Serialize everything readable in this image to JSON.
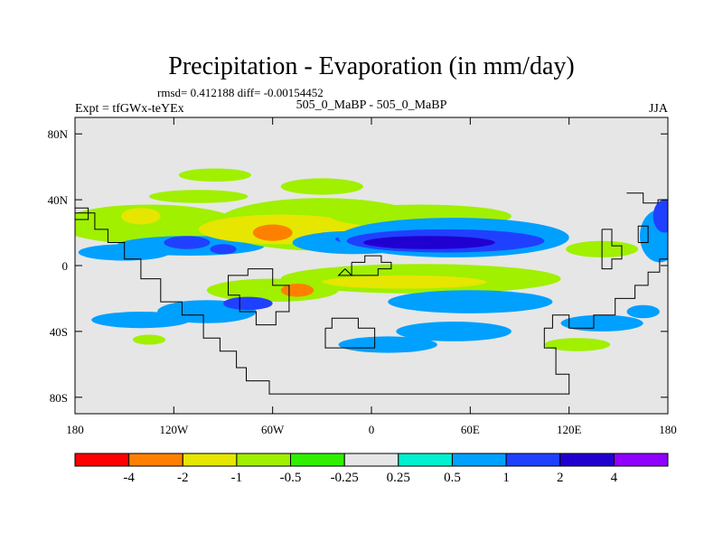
{
  "chart_data": {
    "type": "heatmap",
    "title": "Precipitation - Evaporation (in mm/day)",
    "stats_line": "rmsd= 0.412188 diff= -0.00154452",
    "left_label": "Expt = tfGWx-teYEx",
    "center_label": "505_0_MaBP - 505_0_MaBP",
    "right_label": "JJA",
    "x_ticks": [
      "180",
      "120W",
      "60W",
      "0",
      "60E",
      "120E",
      "180"
    ],
    "y_ticks": [
      "80N",
      "40N",
      "0",
      "40S",
      "80S"
    ],
    "xlim": [
      -180,
      180
    ],
    "ylim": [
      -90,
      90
    ],
    "colorbar": {
      "labels": [
        "-4",
        "-2",
        "-1",
        "-0.5",
        "-0.25",
        "0.25",
        "0.5",
        "1",
        "2",
        "4"
      ],
      "colors": [
        "#ff0000",
        "#ff8000",
        "#e6e600",
        "#a0f000",
        "#30f000",
        "#e6e6e6",
        "#00f0d0",
        "#00a0ff",
        "#2040ff",
        "#2000d0",
        "#9000ff"
      ]
    },
    "field_blobs": [
      {
        "lon": -135,
        "lat": 25,
        "rlon": 55,
        "rlat": 12,
        "level": "-0.5"
      },
      {
        "lon": -140,
        "lat": 30,
        "rlon": 12,
        "rlat": 5,
        "level": "-1"
      },
      {
        "lon": -105,
        "lat": 42,
        "rlon": 30,
        "rlat": 4,
        "level": "-0.5"
      },
      {
        "lon": -150,
        "lat": 8,
        "rlon": 28,
        "rlat": 5,
        "level": "0.5"
      },
      {
        "lon": -110,
        "lat": 12,
        "rlon": 45,
        "rlat": 6,
        "level": "0.5"
      },
      {
        "lon": -112,
        "lat": 14,
        "rlon": 14,
        "rlat": 4,
        "level": "1"
      },
      {
        "lon": -90,
        "lat": 10,
        "rlon": 8,
        "rlat": 3,
        "level": "1"
      },
      {
        "lon": -30,
        "lat": 25,
        "rlon": 65,
        "rlat": 16,
        "level": "-0.5"
      },
      {
        "lon": -55,
        "lat": 22,
        "rlon": 50,
        "rlat": 9,
        "level": "-1"
      },
      {
        "lon": -60,
        "lat": 20,
        "rlon": 12,
        "rlat": 5,
        "level": "-2"
      },
      {
        "lon": -10,
        "lat": 14,
        "rlon": 38,
        "rlat": 7,
        "level": "0.5"
      },
      {
        "lon": 0,
        "lat": 16,
        "rlon": 22,
        "rlat": 3,
        "level": "1"
      },
      {
        "lon": 30,
        "lat": 30,
        "rlon": 55,
        "rlat": 7,
        "level": "-0.5"
      },
      {
        "lon": -30,
        "lat": 48,
        "rlon": 25,
        "rlat": 5,
        "level": "-0.5"
      },
      {
        "lon": -95,
        "lat": 55,
        "rlon": 22,
        "rlat": 4,
        "level": "-0.5"
      },
      {
        "lon": 50,
        "lat": 17,
        "rlon": 70,
        "rlat": 12,
        "level": "0.5"
      },
      {
        "lon": 45,
        "lat": 15,
        "rlon": 60,
        "rlat": 7,
        "level": "1"
      },
      {
        "lon": 35,
        "lat": 14,
        "rlon": 40,
        "rlat": 4,
        "level": "2"
      },
      {
        "lon": 140,
        "lat": 10,
        "rlon": 22,
        "rlat": 5,
        "level": "-0.5"
      },
      {
        "lon": 175,
        "lat": 18,
        "rlon": 12,
        "rlat": 16,
        "level": "0.5"
      },
      {
        "lon": 178,
        "lat": 30,
        "rlon": 7,
        "rlat": 10,
        "level": "1"
      },
      {
        "lon": 30,
        "lat": -8,
        "rlon": 85,
        "rlat": 9,
        "level": "-0.5"
      },
      {
        "lon": 20,
        "lat": -10,
        "rlon": 50,
        "rlat": 4,
        "level": "-1"
      },
      {
        "lon": -60,
        "lat": -15,
        "rlon": 40,
        "rlat": 7,
        "level": "-0.5"
      },
      {
        "lon": -45,
        "lat": -15,
        "rlon": 10,
        "rlat": 4,
        "level": "-2"
      },
      {
        "lon": 60,
        "lat": -22,
        "rlon": 50,
        "rlat": 7,
        "level": "0.5"
      },
      {
        "lon": -100,
        "lat": -28,
        "rlon": 30,
        "rlat": 7,
        "level": "0.5"
      },
      {
        "lon": -75,
        "lat": -23,
        "rlon": 15,
        "rlat": 4,
        "level": "1"
      },
      {
        "lon": 50,
        "lat": -40,
        "rlon": 35,
        "rlat": 6,
        "level": "0.5"
      },
      {
        "lon": 10,
        "lat": -48,
        "rlon": 30,
        "rlat": 5,
        "level": "0.5"
      },
      {
        "lon": -140,
        "lat": -33,
        "rlon": 30,
        "rlat": 5,
        "level": "0.5"
      },
      {
        "lon": -135,
        "lat": -45,
        "rlon": 10,
        "rlat": 3,
        "level": "-0.5"
      },
      {
        "lon": 140,
        "lat": -35,
        "rlon": 25,
        "rlat": 5,
        "level": "0.5"
      },
      {
        "lon": 125,
        "lat": -48,
        "rlon": 20,
        "rlat": 4,
        "level": "-0.5"
      },
      {
        "lon": 165,
        "lat": -28,
        "rlon": 10,
        "rlat": 4,
        "level": "0.5"
      }
    ],
    "land_outlines": [
      [
        [
          -180,
          32
        ],
        [
          -168,
          32
        ],
        [
          -168,
          22
        ],
        [
          -160,
          22
        ],
        [
          -160,
          14
        ],
        [
          -150,
          14
        ],
        [
          -150,
          4
        ],
        [
          -140,
          4
        ],
        [
          -140,
          -8
        ],
        [
          -128,
          -8
        ],
        [
          -128,
          -22
        ],
        [
          -115,
          -22
        ],
        [
          -115,
          -30
        ],
        [
          -102,
          -30
        ],
        [
          -102,
          -44
        ],
        [
          -92,
          -44
        ],
        [
          -92,
          -52
        ],
        [
          -82,
          -52
        ],
        [
          -82,
          -62
        ],
        [
          -76,
          -62
        ],
        [
          -76,
          -70
        ],
        [
          -62,
          -70
        ],
        [
          -62,
          -78
        ],
        [
          120,
          -78
        ],
        [
          120,
          -66
        ],
        [
          112,
          -66
        ],
        [
          112,
          -50
        ],
        [
          105,
          -50
        ],
        [
          105,
          -38
        ],
        [
          110,
          -38
        ],
        [
          110,
          -30
        ],
        [
          120,
          -30
        ],
        [
          120,
          -38
        ],
        [
          135,
          -38
        ],
        [
          135,
          -30
        ],
        [
          148,
          -30
        ],
        [
          148,
          -20
        ],
        [
          160,
          -20
        ],
        [
          160,
          -12
        ],
        [
          168,
          -12
        ],
        [
          168,
          -4
        ],
        [
          175,
          -4
        ],
        [
          175,
          4
        ],
        [
          180,
          4
        ]
      ],
      [
        [
          -180,
          28
        ],
        [
          -172,
          28
        ],
        [
          -172,
          35
        ],
        [
          -180,
          35
        ]
      ],
      [
        [
          -75,
          -2
        ],
        [
          -60,
          -2
        ],
        [
          -60,
          -12
        ],
        [
          -50,
          -12
        ],
        [
          -50,
          -28
        ],
        [
          -58,
          -28
        ],
        [
          -58,
          -36
        ],
        [
          -70,
          -36
        ],
        [
          -70,
          -28
        ],
        [
          -80,
          -28
        ],
        [
          -80,
          -18
        ],
        [
          -87,
          -18
        ],
        [
          -87,
          -6
        ],
        [
          -75,
          -6
        ],
        [
          -75,
          -2
        ]
      ],
      [
        [
          -12,
          2
        ],
        [
          -4,
          2
        ],
        [
          -4,
          6
        ],
        [
          6,
          6
        ],
        [
          6,
          2
        ],
        [
          12,
          2
        ],
        [
          12,
          -2
        ],
        [
          4,
          -2
        ],
        [
          4,
          -6
        ],
        [
          -12,
          -6
        ],
        [
          -12,
          2
        ]
      ],
      [
        [
          -28,
          -38
        ],
        [
          -24,
          -38
        ],
        [
          -24,
          -32
        ],
        [
          -8,
          -32
        ],
        [
          -8,
          -38
        ],
        [
          2,
          -38
        ],
        [
          2,
          -50
        ],
        [
          -28,
          -50
        ],
        [
          -28,
          -38
        ]
      ],
      [
        [
          -16,
          -2
        ],
        [
          -20,
          -6
        ],
        [
          -12,
          -6
        ],
        [
          -16,
          -2
        ]
      ],
      [
        [
          155,
          44
        ],
        [
          165,
          44
        ],
        [
          165,
          38
        ],
        [
          174,
          38
        ],
        [
          174,
          40
        ],
        [
          180,
          40
        ]
      ],
      [
        [
          140,
          22
        ],
        [
          146,
          22
        ],
        [
          146,
          12
        ],
        [
          152,
          12
        ],
        [
          152,
          4
        ],
        [
          146,
          4
        ],
        [
          146,
          -2
        ],
        [
          140,
          -2
        ],
        [
          140,
          22
        ]
      ],
      [
        [
          162,
          14
        ],
        [
          168,
          14
        ],
        [
          168,
          24
        ],
        [
          162,
          24
        ],
        [
          162,
          14
        ]
      ]
    ]
  }
}
